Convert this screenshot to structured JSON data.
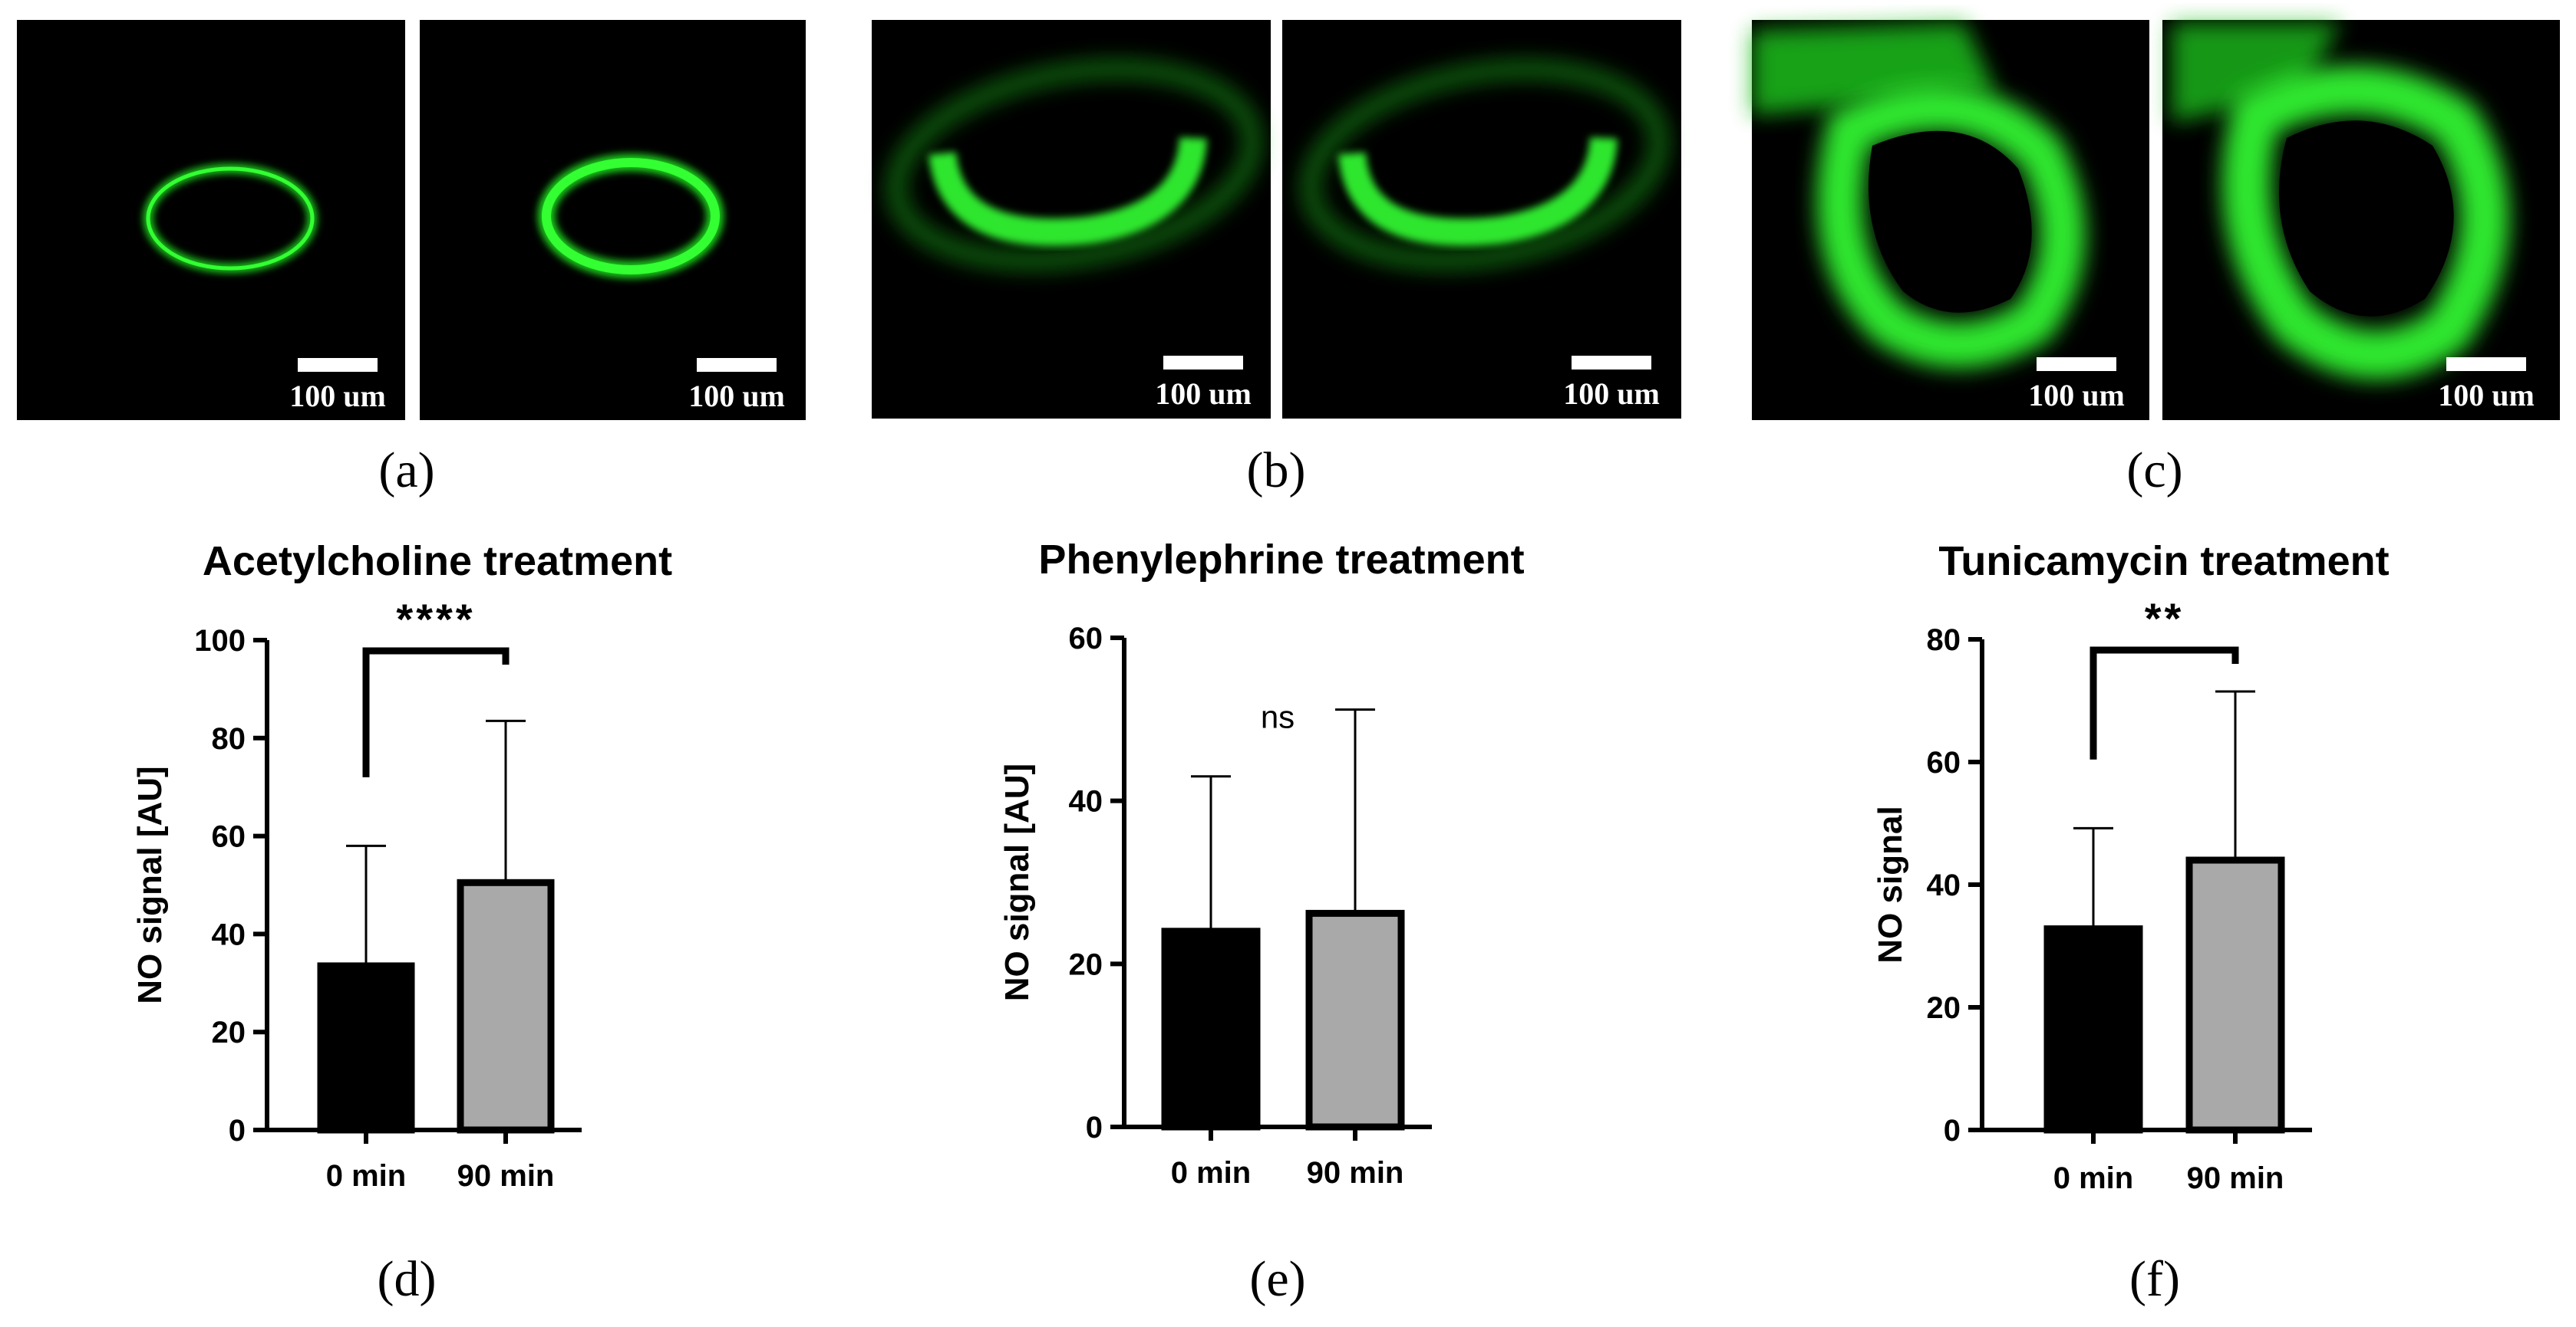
{
  "images": {
    "scale_label": "100 um",
    "panel_labels": [
      "(a)",
      "(b)",
      "(c)"
    ]
  },
  "chart_data": [
    {
      "type": "bar",
      "panel": "(d)",
      "title": "Acetylcholine treatment",
      "xlabel": "",
      "ylabel": "NO signal [AU]",
      "categories": [
        "0 min",
        "90 min"
      ],
      "values": [
        33.5,
        50.5
      ],
      "errors_upper": [
        58,
        83.5
      ],
      "bar_colors": [
        "#000000",
        "#a9a9a9"
      ],
      "ylim": [
        0,
        100
      ],
      "yticks": [
        0,
        20,
        40,
        60,
        80,
        100
      ],
      "significance": "****"
    },
    {
      "type": "bar",
      "panel": "(e)",
      "title": "Phenylephrine treatment",
      "xlabel": "",
      "ylabel": "NO signal [AU]",
      "categories": [
        "0 min",
        "90 min"
      ],
      "values": [
        24,
        26.2
      ],
      "errors_upper": [
        43,
        51.2
      ],
      "bar_colors": [
        "#000000",
        "#a9a9a9"
      ],
      "ylim": [
        0,
        60
      ],
      "yticks": [
        0,
        20,
        40,
        60
      ],
      "significance": "ns"
    },
    {
      "type": "bar",
      "panel": "(f)",
      "title": "Tunicamycin treatment",
      "xlabel": "",
      "ylabel": "NO signal",
      "categories": [
        "0 min",
        "90 min"
      ],
      "values": [
        32.8,
        44
      ],
      "errors_upper": [
        49.2,
        71.5
      ],
      "bar_colors": [
        "#000000",
        "#a9a9a9"
      ],
      "ylim": [
        0,
        80
      ],
      "yticks": [
        0,
        20,
        40,
        60,
        80
      ],
      "significance": "**"
    }
  ]
}
